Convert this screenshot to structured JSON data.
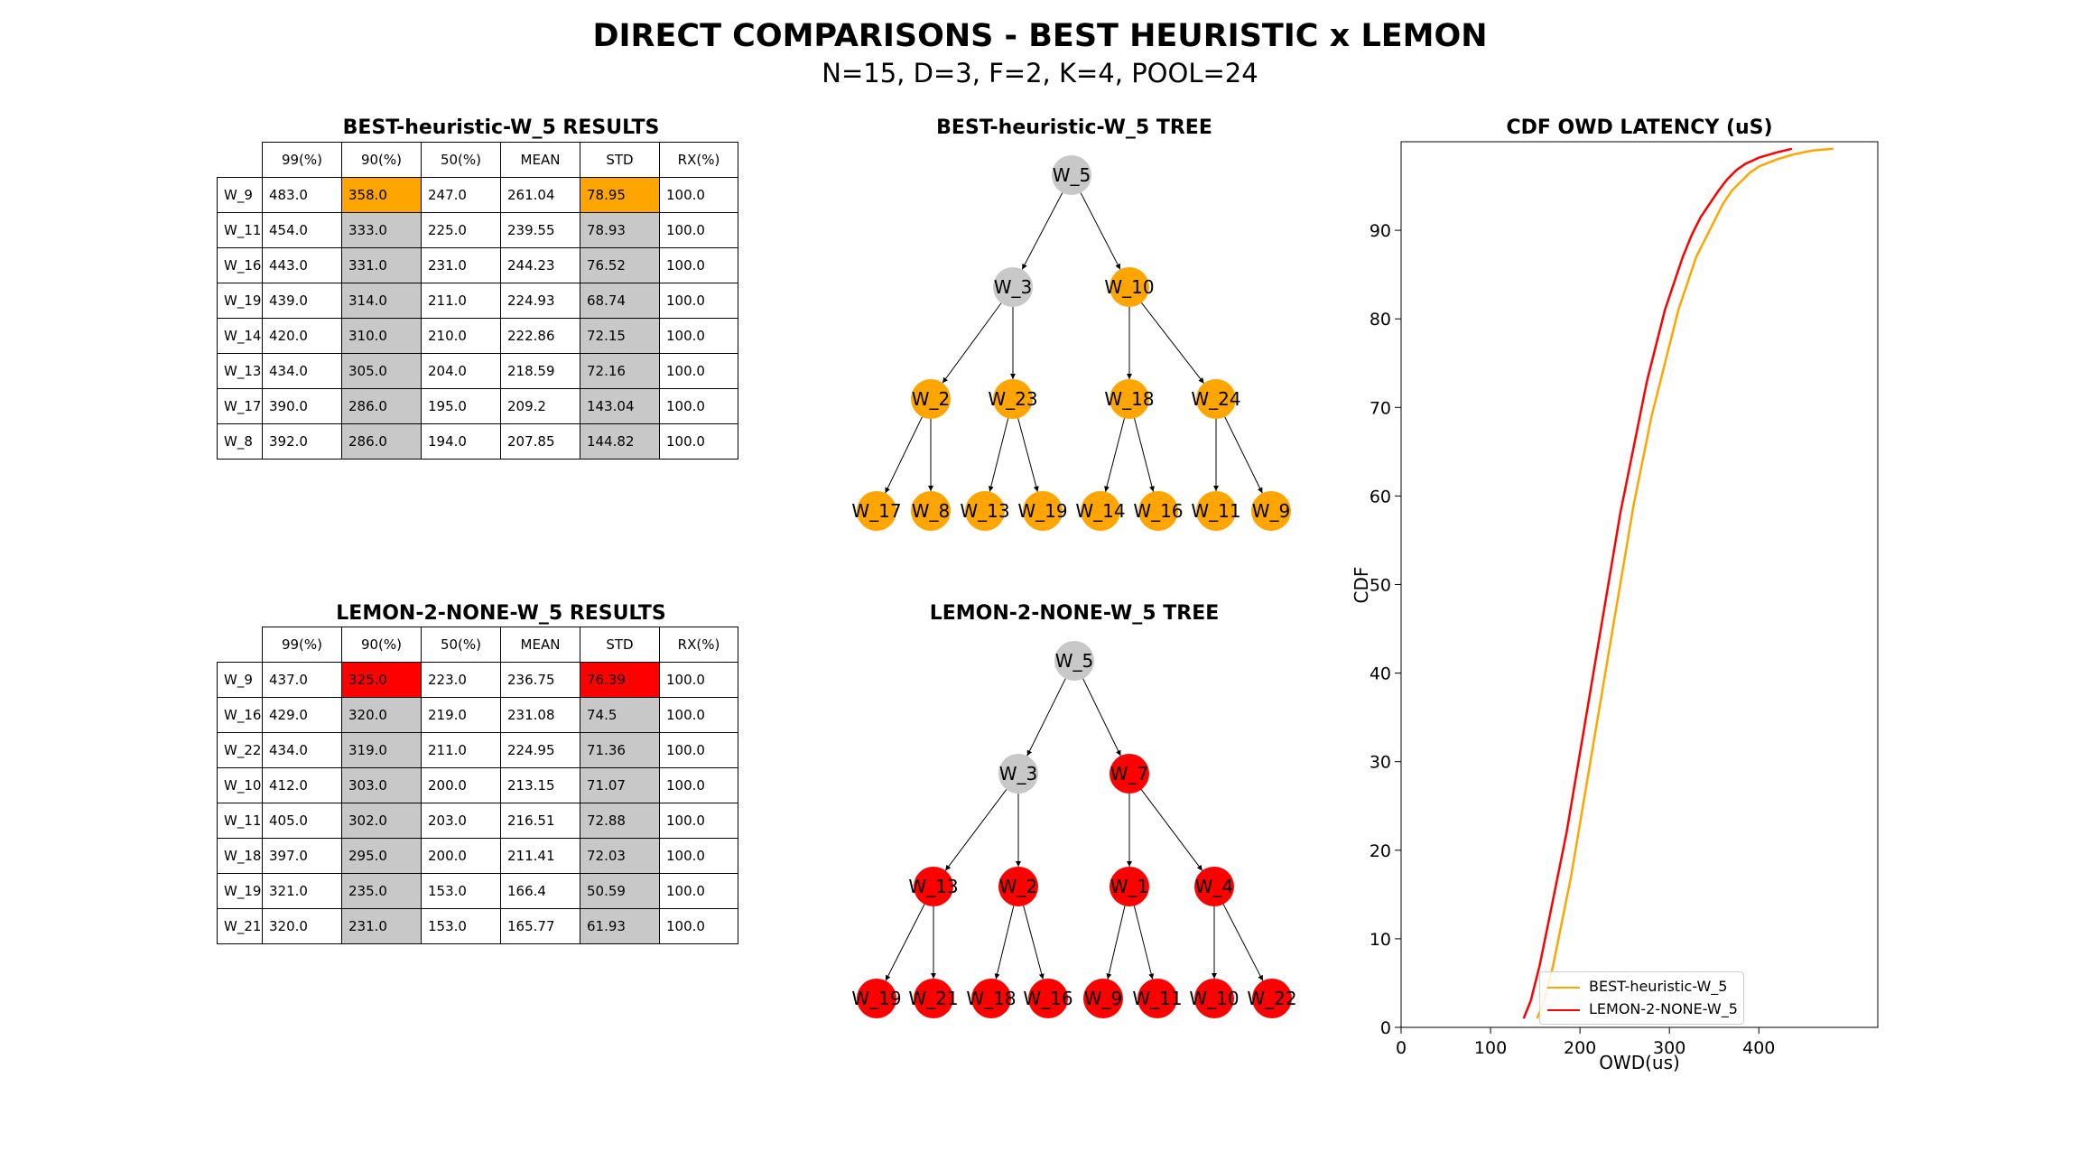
{
  "figure": {
    "title": "DIRECT COMPARISONS - BEST HEURISTIC x LEMON",
    "subtitle": "N=15, D=3, F=2, K=4, POOL=24"
  },
  "colors": {
    "best": "#FFA500",
    "lemon": "#FF0000",
    "root_gray": "#C8C8C8",
    "cell_gray": "#C8C8C8"
  },
  "tables": [
    {
      "title": "BEST-heuristic-W_5 RESULTS",
      "highlight": "#FFA500",
      "columns": [
        "99(%)",
        "90(%)",
        "50(%)",
        "MEAN",
        "STD",
        "RX(%)"
      ],
      "rows": [
        {
          "label": "W_9",
          "cells": [
            "483.0",
            "358.0",
            "247.0",
            "261.04",
            "78.95",
            "100.0"
          ]
        },
        {
          "label": "W_11",
          "cells": [
            "454.0",
            "333.0",
            "225.0",
            "239.55",
            "78.93",
            "100.0"
          ]
        },
        {
          "label": "W_16",
          "cells": [
            "443.0",
            "331.0",
            "231.0",
            "244.23",
            "76.52",
            "100.0"
          ]
        },
        {
          "label": "W_19",
          "cells": [
            "439.0",
            "314.0",
            "211.0",
            "224.93",
            "68.74",
            "100.0"
          ]
        },
        {
          "label": "W_14",
          "cells": [
            "420.0",
            "310.0",
            "210.0",
            "222.86",
            "72.15",
            "100.0"
          ]
        },
        {
          "label": "W_13",
          "cells": [
            "434.0",
            "305.0",
            "204.0",
            "218.59",
            "72.16",
            "100.0"
          ]
        },
        {
          "label": "W_17",
          "cells": [
            "390.0",
            "286.0",
            "195.0",
            "209.2",
            "143.04",
            "100.0"
          ]
        },
        {
          "label": "W_8",
          "cells": [
            "392.0",
            "286.0",
            "194.0",
            "207.85",
            "144.82",
            "100.0"
          ]
        }
      ]
    },
    {
      "title": "LEMON-2-NONE-W_5 RESULTS",
      "highlight": "#FF0000",
      "columns": [
        "99(%)",
        "90(%)",
        "50(%)",
        "MEAN",
        "STD",
        "RX(%)"
      ],
      "rows": [
        {
          "label": "W_9",
          "cells": [
            "437.0",
            "325.0",
            "223.0",
            "236.75",
            "76.39",
            "100.0"
          ]
        },
        {
          "label": "W_16",
          "cells": [
            "429.0",
            "320.0",
            "219.0",
            "231.08",
            "74.5",
            "100.0"
          ]
        },
        {
          "label": "W_22",
          "cells": [
            "434.0",
            "319.0",
            "211.0",
            "224.95",
            "71.36",
            "100.0"
          ]
        },
        {
          "label": "W_10",
          "cells": [
            "412.0",
            "303.0",
            "200.0",
            "213.15",
            "71.07",
            "100.0"
          ]
        },
        {
          "label": "W_11",
          "cells": [
            "405.0",
            "302.0",
            "203.0",
            "216.51",
            "72.88",
            "100.0"
          ]
        },
        {
          "label": "W_18",
          "cells": [
            "397.0",
            "295.0",
            "200.0",
            "211.41",
            "72.03",
            "100.0"
          ]
        },
        {
          "label": "W_19",
          "cells": [
            "321.0",
            "235.0",
            "153.0",
            "166.4",
            "50.59",
            "100.0"
          ]
        },
        {
          "label": "W_21",
          "cells": [
            "320.0",
            "231.0",
            "153.0",
            "165.77",
            "61.93",
            "100.0"
          ]
        }
      ]
    }
  ],
  "trees": [
    {
      "title": "BEST-heuristic-W_5 TREE",
      "node_color": "#FFA500",
      "root": "W_5",
      "level1": [
        "W_3",
        "W_10"
      ],
      "level2": [
        "W_2",
        "W_23",
        "W_18",
        "W_24"
      ],
      "level3": [
        "W_17",
        "W_8",
        "W_13",
        "W_19",
        "W_14",
        "W_16",
        "W_11",
        "W_9"
      ]
    },
    {
      "title": "LEMON-2-NONE-W_5 TREE",
      "node_color": "#FF0000",
      "root": "W_5",
      "level1": [
        "W_3",
        "W_7"
      ],
      "level2": [
        "W_13",
        "W_2",
        "W_1",
        "W_4"
      ],
      "level3": [
        "W_19",
        "W_21",
        "W_18",
        "W_16",
        "W_9",
        "W_11",
        "W_10",
        "W_22"
      ]
    }
  ],
  "chart_data": {
    "type": "line",
    "title": "CDF OWD LATENCY (uS)",
    "xlabel": "OWD(us)",
    "ylabel": "CDF",
    "xlim": [
      0,
      533
    ],
    "ylim": [
      0,
      100
    ],
    "xticks": [
      0,
      100,
      200,
      300,
      400
    ],
    "yticks": [
      0,
      10,
      20,
      30,
      40,
      50,
      60,
      70,
      80,
      90
    ],
    "legend_position": "lower-center",
    "series": [
      {
        "name": "BEST-heuristic-W_5",
        "color": "#FFA500",
        "x": [
          152,
          160,
          170,
          180,
          190,
          200,
          210,
          220,
          230,
          240,
          250,
          260,
          270,
          280,
          290,
          300,
          310,
          320,
          330,
          340,
          350,
          360,
          370,
          380,
          390,
          400,
          420,
          440,
          460,
          483
        ],
        "y": [
          1,
          3,
          7,
          12,
          17,
          23,
          29,
          35,
          41,
          47,
          53,
          59,
          64,
          69,
          73,
          77,
          81,
          84,
          87,
          89,
          91,
          93,
          94.5,
          95.5,
          96.5,
          97.2,
          98,
          98.6,
          99,
          99.2
        ]
      },
      {
        "name": "LEMON-2-NONE-W_5",
        "color": "#FF0000",
        "x": [
          137,
          145,
          155,
          165,
          175,
          185,
          195,
          205,
          215,
          225,
          235,
          245,
          255,
          265,
          275,
          285,
          295,
          305,
          315,
          325,
          335,
          345,
          355,
          365,
          375,
          385,
          400,
          420,
          437
        ],
        "y": [
          1,
          3,
          7,
          12,
          17,
          22,
          28,
          34,
          40,
          46,
          52,
          58,
          63,
          68,
          73,
          77,
          81,
          84,
          87,
          89.5,
          91.5,
          93,
          94.5,
          95.8,
          96.8,
          97.5,
          98.2,
          98.8,
          99.2
        ]
      }
    ]
  }
}
